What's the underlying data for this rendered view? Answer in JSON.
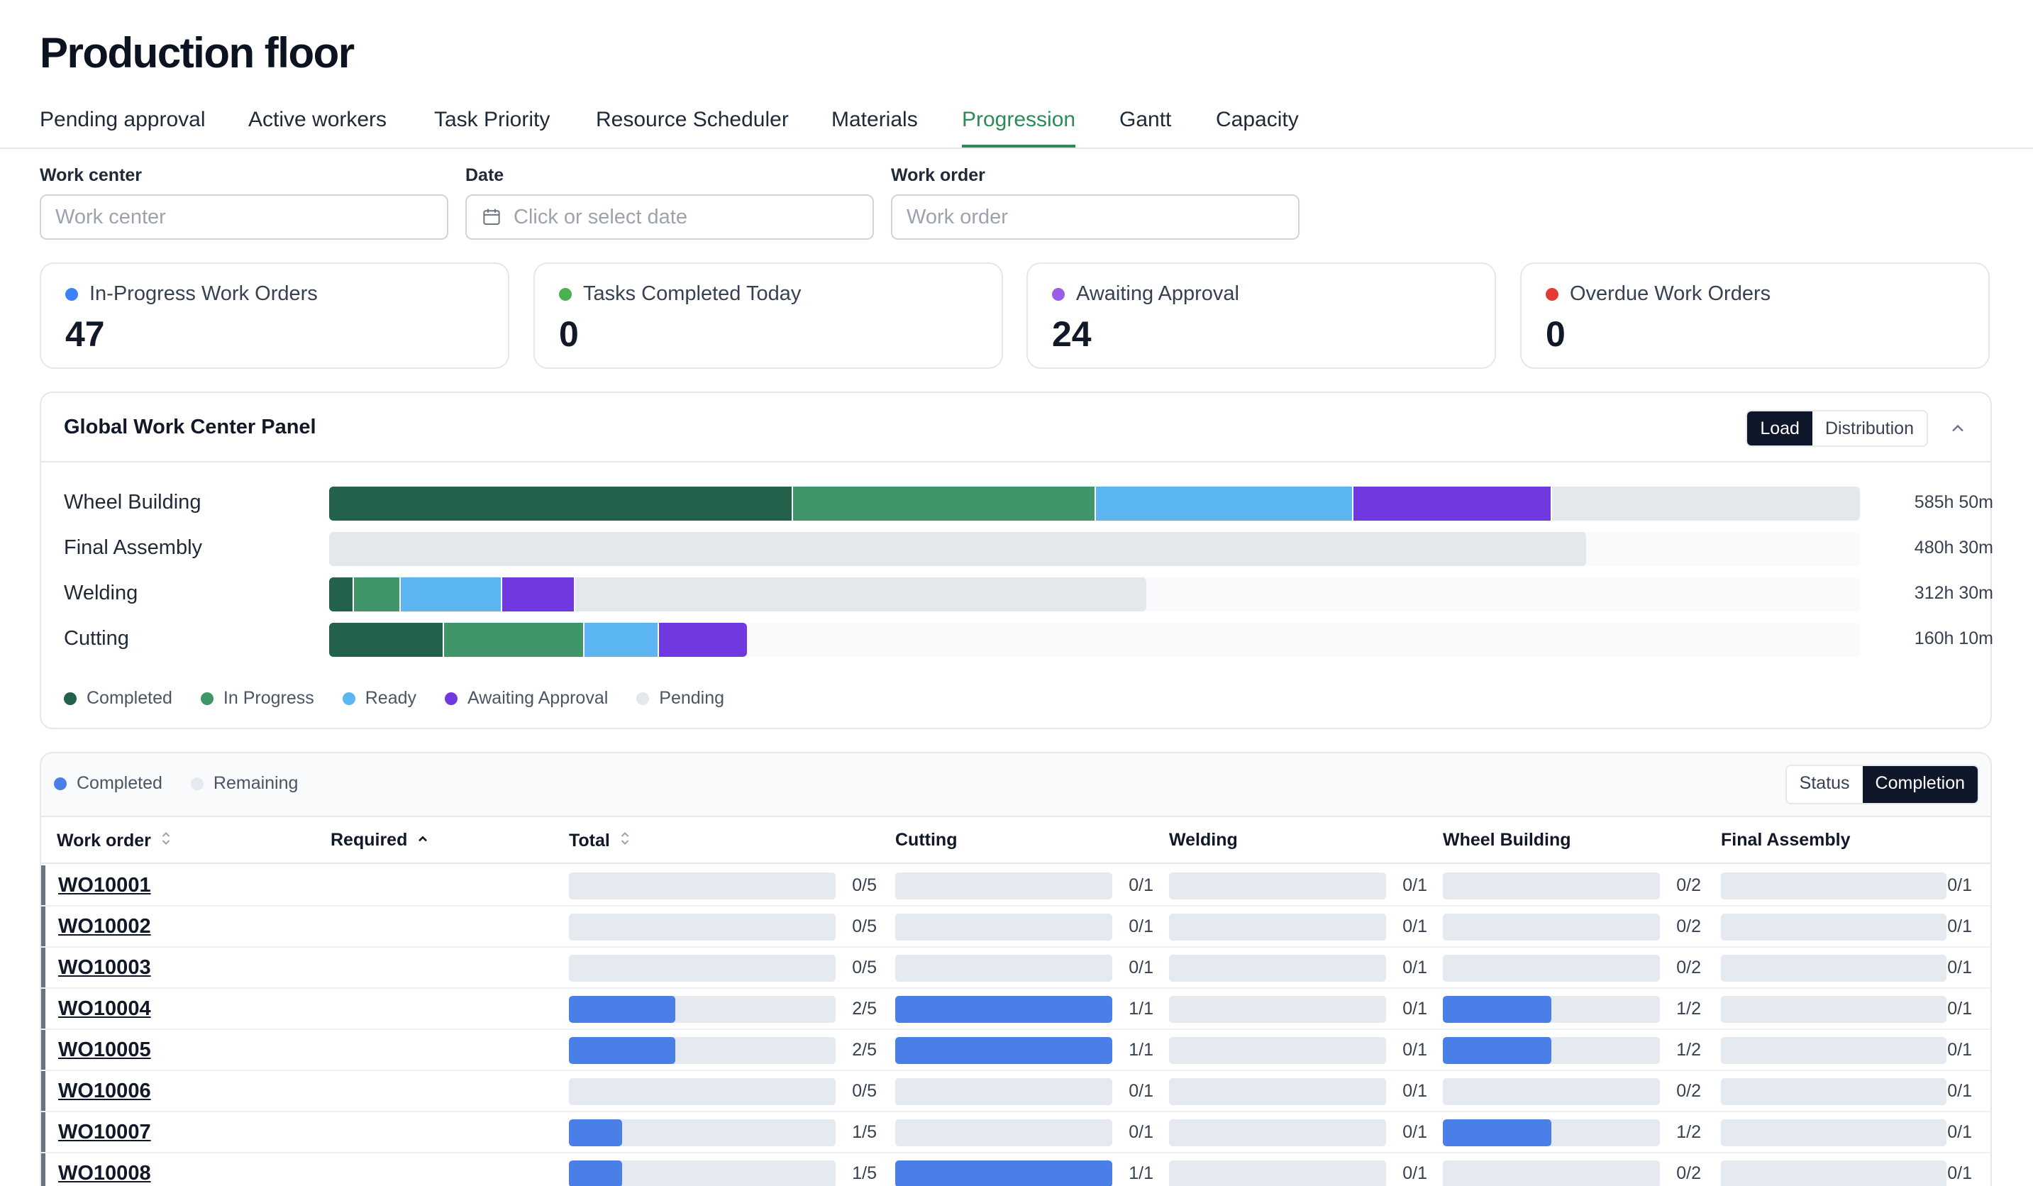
{
  "title": "Production floor",
  "tabs": [
    {
      "label": "Pending approval",
      "active": false
    },
    {
      "label": "Active workers",
      "active": false
    },
    {
      "label": "Task Priority",
      "active": false
    },
    {
      "label": "Resource Scheduler",
      "active": false
    },
    {
      "label": "Materials",
      "active": false
    },
    {
      "label": "Progression",
      "active": true
    },
    {
      "label": "Gantt",
      "active": false
    },
    {
      "label": "Capacity",
      "active": false
    }
  ],
  "filters": {
    "work_center": {
      "label": "Work center",
      "placeholder": "Work center",
      "value": ""
    },
    "date": {
      "label": "Date",
      "placeholder": "Click or select date",
      "value": ""
    },
    "work_order": {
      "label": "Work order",
      "placeholder": "Work order",
      "value": ""
    }
  },
  "kpis": [
    {
      "label": "In-Progress Work Orders",
      "value": "47",
      "color": "#3b82f6"
    },
    {
      "label": "Tasks Completed Today",
      "value": "0",
      "color": "#4caf50"
    },
    {
      "label": "Awaiting Approval",
      "value": "24",
      "color": "#9b5de5"
    },
    {
      "label": "Overdue Work Orders",
      "value": "0",
      "color": "#e53935"
    }
  ],
  "panel": {
    "title": "Global Work Center Panel",
    "toggle": {
      "options": [
        "Load",
        "Distribution"
      ],
      "selected": "Load"
    },
    "status_colors": {
      "completed": "#24614a",
      "in_progress": "#3f9668",
      "ready": "#5bb5f0",
      "awaiting": "#7039e0",
      "pending": "#e4e7eb"
    },
    "work_centers": [
      {
        "name": "Wheel Building",
        "time": "585h 50m",
        "share": 1.0,
        "completed": 0.303,
        "in_progress": 0.198,
        "ready": 0.168,
        "awaiting": 0.13,
        "pending": 0.201
      },
      {
        "name": "Final Assembly",
        "time": "480h 30m",
        "share": 0.821,
        "completed": 0,
        "in_progress": 0,
        "ready": 0,
        "awaiting": 0,
        "pending": 1.0
      },
      {
        "name": "Welding",
        "time": "312h 30m",
        "share": 0.534,
        "completed": 0.03,
        "in_progress": 0.058,
        "ready": 0.124,
        "awaiting": 0.089,
        "pending": 0.699
      },
      {
        "name": "Cutting",
        "time": "160h 10m",
        "share": 0.273,
        "completed": 0.275,
        "in_progress": 0.336,
        "ready": 0.178,
        "awaiting": 0.211,
        "pending": 0
      }
    ],
    "legend": [
      "Completed",
      "In Progress",
      "Ready",
      "Awaiting Approval",
      "Pending"
    ]
  },
  "table": {
    "legend": [
      {
        "label": "Completed",
        "color": "#4a7fe8"
      },
      {
        "label": "Remaining",
        "color": "#e5e9f0"
      }
    ],
    "toggle": {
      "options": [
        "Status",
        "Completion"
      ],
      "selected": "Completion"
    },
    "columns": [
      "Work order",
      "Required",
      "Total",
      "Cutting",
      "Welding",
      "Wheel Building",
      "Final Assembly"
    ],
    "rows": [
      {
        "wo": "WO10001",
        "total": [
          0,
          5
        ],
        "cutting": [
          0,
          1
        ],
        "welding": [
          0,
          1
        ],
        "wheel": [
          0,
          2
        ],
        "final": [
          0,
          1
        ]
      },
      {
        "wo": "WO10002",
        "total": [
          0,
          5
        ],
        "cutting": [
          0,
          1
        ],
        "welding": [
          0,
          1
        ],
        "wheel": [
          0,
          2
        ],
        "final": [
          0,
          1
        ]
      },
      {
        "wo": "WO10003",
        "total": [
          0,
          5
        ],
        "cutting": [
          0,
          1
        ],
        "welding": [
          0,
          1
        ],
        "wheel": [
          0,
          2
        ],
        "final": [
          0,
          1
        ]
      },
      {
        "wo": "WO10004",
        "total": [
          2,
          5
        ],
        "cutting": [
          1,
          1
        ],
        "welding": [
          0,
          1
        ],
        "wheel": [
          1,
          2
        ],
        "final": [
          0,
          1
        ]
      },
      {
        "wo": "WO10005",
        "total": [
          2,
          5
        ],
        "cutting": [
          1,
          1
        ],
        "welding": [
          0,
          1
        ],
        "wheel": [
          1,
          2
        ],
        "final": [
          0,
          1
        ]
      },
      {
        "wo": "WO10006",
        "total": [
          0,
          5
        ],
        "cutting": [
          0,
          1
        ],
        "welding": [
          0,
          1
        ],
        "wheel": [
          0,
          2
        ],
        "final": [
          0,
          1
        ]
      },
      {
        "wo": "WO10007",
        "total": [
          1,
          5
        ],
        "cutting": [
          0,
          1
        ],
        "welding": [
          0,
          1
        ],
        "wheel": [
          1,
          2
        ],
        "final": [
          0,
          1
        ]
      },
      {
        "wo": "WO10008",
        "total": [
          1,
          5
        ],
        "cutting": [
          1,
          1
        ],
        "welding": [
          0,
          1
        ],
        "wheel": [
          0,
          2
        ],
        "final": [
          0,
          1
        ]
      }
    ]
  }
}
